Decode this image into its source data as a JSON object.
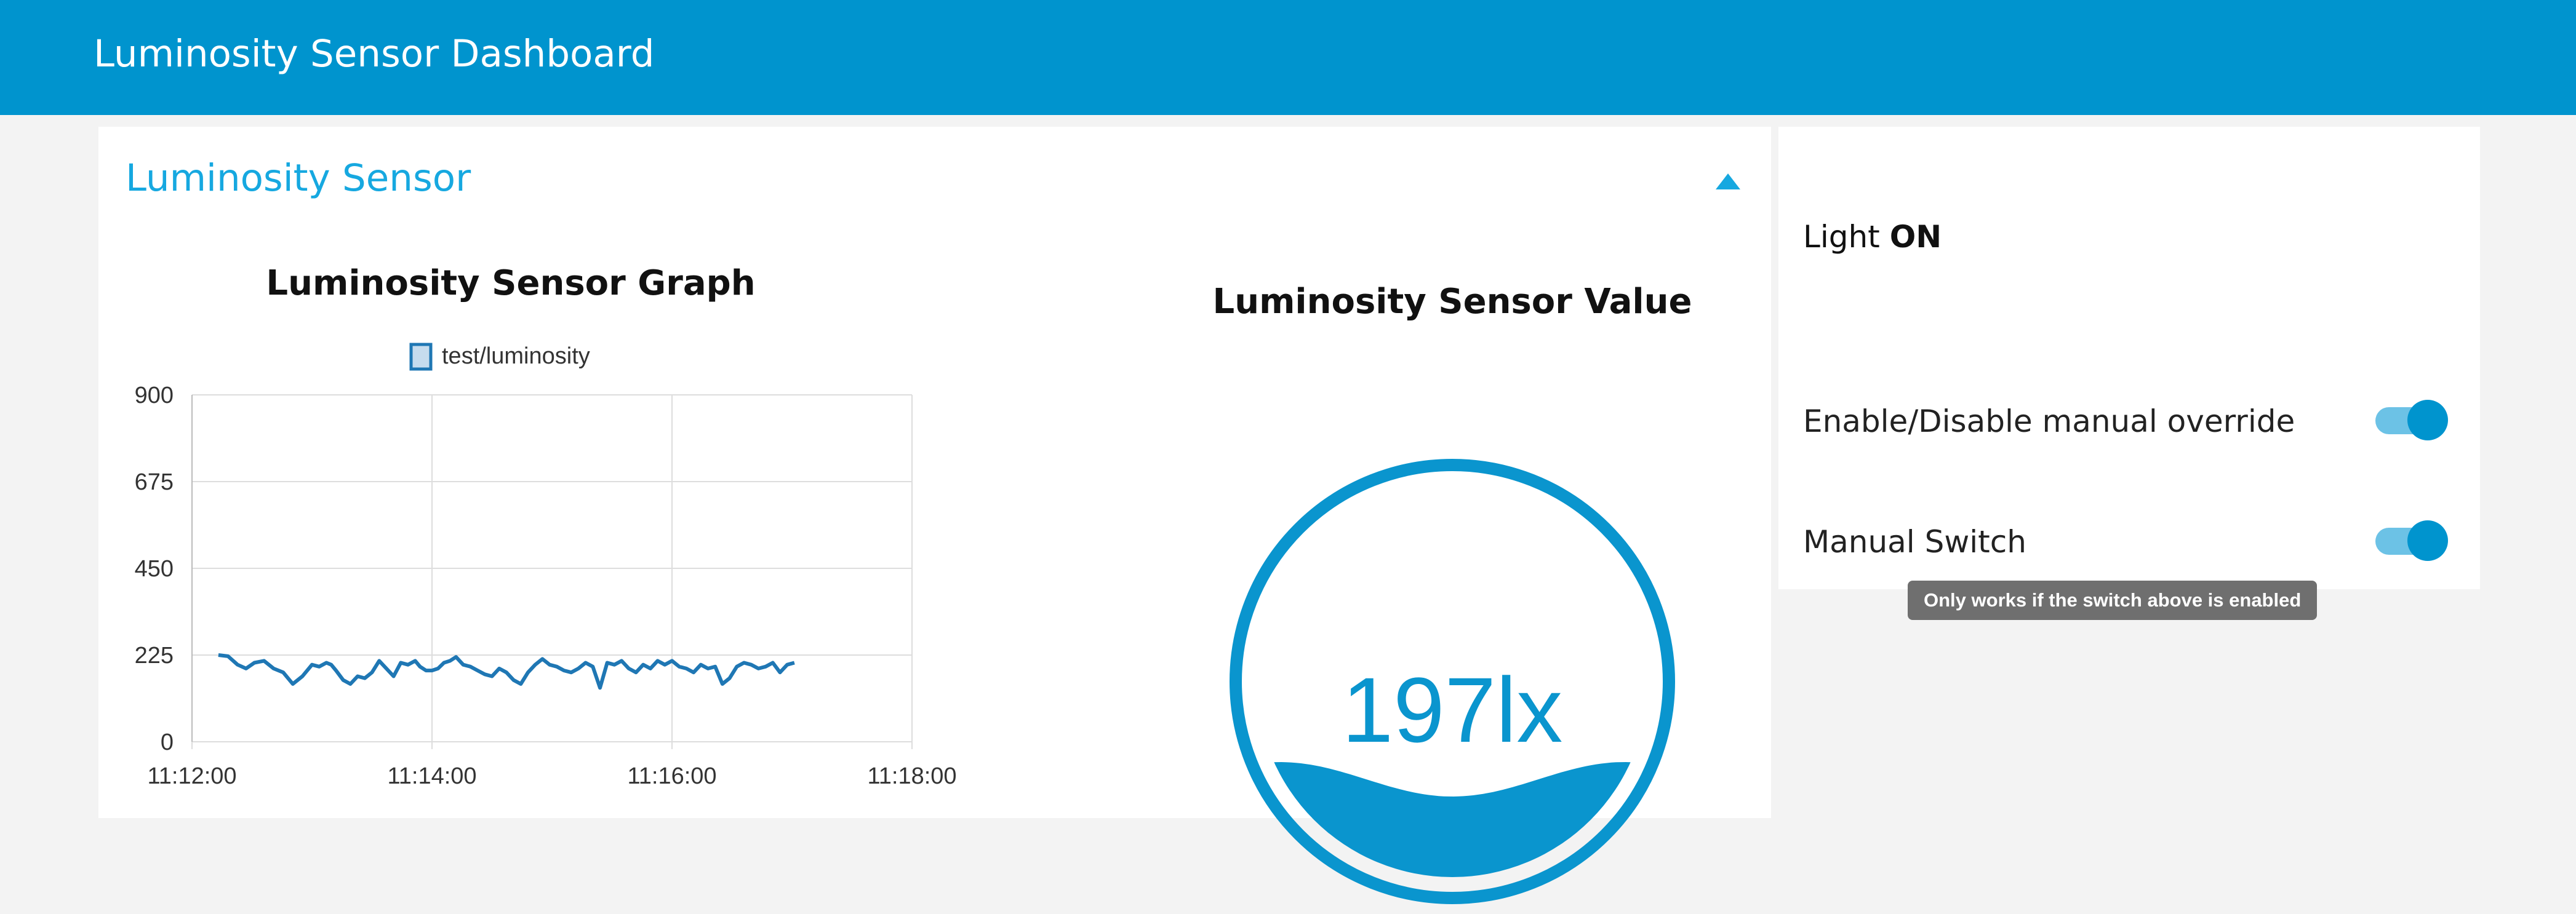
{
  "header": {
    "title": "Luminosity Sensor Dashboard"
  },
  "group": {
    "title": "Luminosity Sensor",
    "collapse_icon": "caret-up-icon"
  },
  "chart_data": {
    "type": "line",
    "title": "Luminosity Sensor Graph",
    "legend": [
      "test/luminosity"
    ],
    "legend_position": "top",
    "xlabel": "",
    "ylabel": "",
    "ylim": [
      0,
      900
    ],
    "y_ticks": [
      0,
      225,
      450,
      675,
      900
    ],
    "y_tick_labels": [
      "0",
      "225",
      "450",
      "675",
      "900"
    ],
    "x_tick_labels": [
      "11:12:00",
      "11:14:00",
      "11:16:00",
      "11:18:00"
    ],
    "x_range_minutes": [
      0,
      6
    ],
    "grid": true,
    "series": [
      {
        "name": "test/luminosity",
        "color": "#1f77b4",
        "x": [
          0.22,
          0.3,
          0.38,
          0.45,
          0.52,
          0.6,
          0.68,
          0.76,
          0.84,
          0.92,
          1.0,
          1.06,
          1.12,
          1.16,
          1.2,
          1.26,
          1.32,
          1.38,
          1.44,
          1.5,
          1.56,
          1.62,
          1.68,
          1.74,
          1.8,
          1.86,
          1.9,
          1.95,
          2.0,
          2.05,
          2.1,
          2.15,
          2.2,
          2.26,
          2.32,
          2.38,
          2.44,
          2.5,
          2.56,
          2.62,
          2.68,
          2.74,
          2.8,
          2.86,
          2.92,
          2.98,
          3.04,
          3.1,
          3.16,
          3.22,
          3.28,
          3.34,
          3.4,
          3.46,
          3.52,
          3.58,
          3.64,
          3.7,
          3.76,
          3.82,
          3.88,
          3.94,
          4.0,
          4.06,
          4.12,
          4.18,
          4.24,
          4.3,
          4.36,
          4.42,
          4.48,
          4.54,
          4.6,
          4.66,
          4.72,
          4.78,
          4.84,
          4.9,
          4.96,
          5.02
        ],
        "values": [
          225,
          222,
          200,
          190,
          205,
          210,
          190,
          180,
          150,
          170,
          200,
          195,
          205,
          200,
          185,
          160,
          150,
          170,
          165,
          180,
          210,
          190,
          170,
          205,
          200,
          210,
          195,
          185,
          185,
          190,
          205,
          210,
          220,
          200,
          195,
          185,
          175,
          170,
          190,
          180,
          160,
          150,
          180,
          200,
          215,
          200,
          195,
          185,
          180,
          190,
          205,
          195,
          140,
          205,
          200,
          210,
          190,
          180,
          200,
          190,
          210,
          200,
          210,
          195,
          190,
          180,
          200,
          190,
          195,
          150,
          165,
          195,
          205,
          200,
          190,
          195,
          205,
          180,
          200,
          205
        ]
      }
    ]
  },
  "gauge": {
    "title": "Luminosity Sensor Value",
    "value": 197,
    "unit": "lx",
    "display": "197lx",
    "max": 900,
    "fill_fraction": 0.25,
    "color": "#0a95ce"
  },
  "controls": {
    "light_label": "Light",
    "light_state": "ON",
    "override_label": "Enable/Disable manual override",
    "override_on": true,
    "manual_label": "Manual Switch",
    "manual_on": true,
    "tooltip": "Only works if the switch above is enabled"
  }
}
